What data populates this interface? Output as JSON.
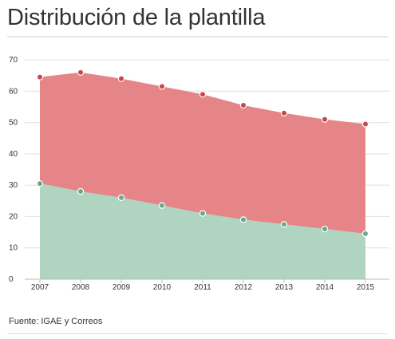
{
  "title": "Distribución de la plantilla",
  "source": "Fuente: IGAE y Correos",
  "colors": {
    "top_fill": "#e58587",
    "top_marker": "#c8464e",
    "bottom_fill": "#afd4bf",
    "bottom_marker": "#6aaa88",
    "grid": "#e0e0e0",
    "axis": "#bbbbbb"
  },
  "chart_data": {
    "type": "area",
    "x": [
      "2007",
      "2008",
      "2009",
      "2010",
      "2011",
      "2012",
      "2013",
      "2014",
      "2015"
    ],
    "y_ticks": [
      "0",
      "10",
      "20",
      "30",
      "40",
      "50",
      "60",
      "70"
    ],
    "ylim": [
      0,
      70
    ],
    "series": [
      {
        "values": [
          30.5,
          28.0,
          26.0,
          23.5,
          21.0,
          19.0,
          17.5,
          16.0,
          14.5
        ]
      },
      {
        "values": [
          64.5,
          66.0,
          64.0,
          61.5,
          59.0,
          55.5,
          53.0,
          51.0,
          49.5
        ]
      }
    ],
    "grid": true,
    "legend": "none"
  }
}
